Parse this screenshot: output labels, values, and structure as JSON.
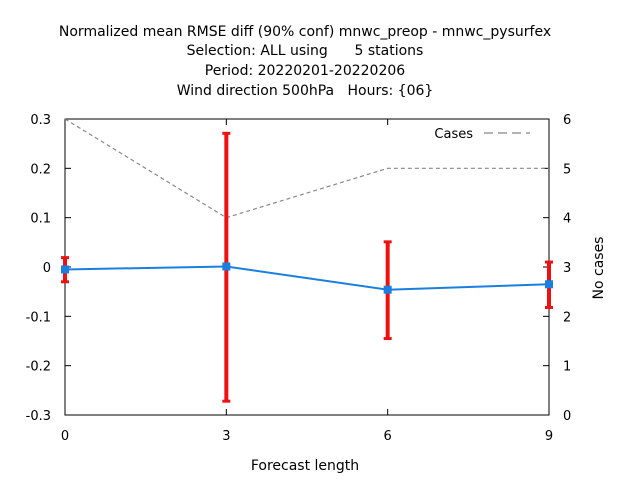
{
  "chart_data": {
    "type": "line",
    "title_lines": [
      "Normalized mean RMSE diff (90% conf) mnwc_preop - mnwc_pysurfex",
      "Selection: ALL using      5 stations",
      "Period: 20220201-20220206",
      "Wind direction 500hPa   Hours: {06}"
    ],
    "xlabel": "Forecast length",
    "ylabel": "",
    "y2label": "No cases",
    "xlim": [
      0,
      9
    ],
    "ylim": [
      -0.3,
      0.3
    ],
    "y2lim": [
      0,
      6
    ],
    "x_ticks": [
      "0",
      "3",
      "6",
      "9"
    ],
    "y_ticks": [
      "0.3",
      "0.2",
      "0.1",
      "0",
      "-0.1",
      "-0.2",
      "-0.3"
    ],
    "y2_ticks": [
      "6",
      "5",
      "4",
      "3",
      "2",
      "1",
      "0"
    ],
    "grid": false,
    "legend_position": "top-right",
    "series": [
      {
        "type": "line-errorbar",
        "color": "#1a7fe0",
        "error_color": "#ee1111",
        "x": [
          0,
          3,
          6,
          9
        ],
        "y": [
          -0.005,
          0.001,
          -0.046,
          -0.035
        ],
        "err_low": [
          -0.03,
          -0.272,
          -0.145,
          -0.082
        ],
        "err_high": [
          0.019,
          0.271,
          0.051,
          0.01
        ]
      },
      {
        "name": "Cases",
        "type": "dashed-line",
        "axis": "y2",
        "color": "#888888",
        "x": [
          0,
          3,
          6,
          9
        ],
        "y": [
          6,
          4,
          5,
          5
        ]
      }
    ]
  }
}
